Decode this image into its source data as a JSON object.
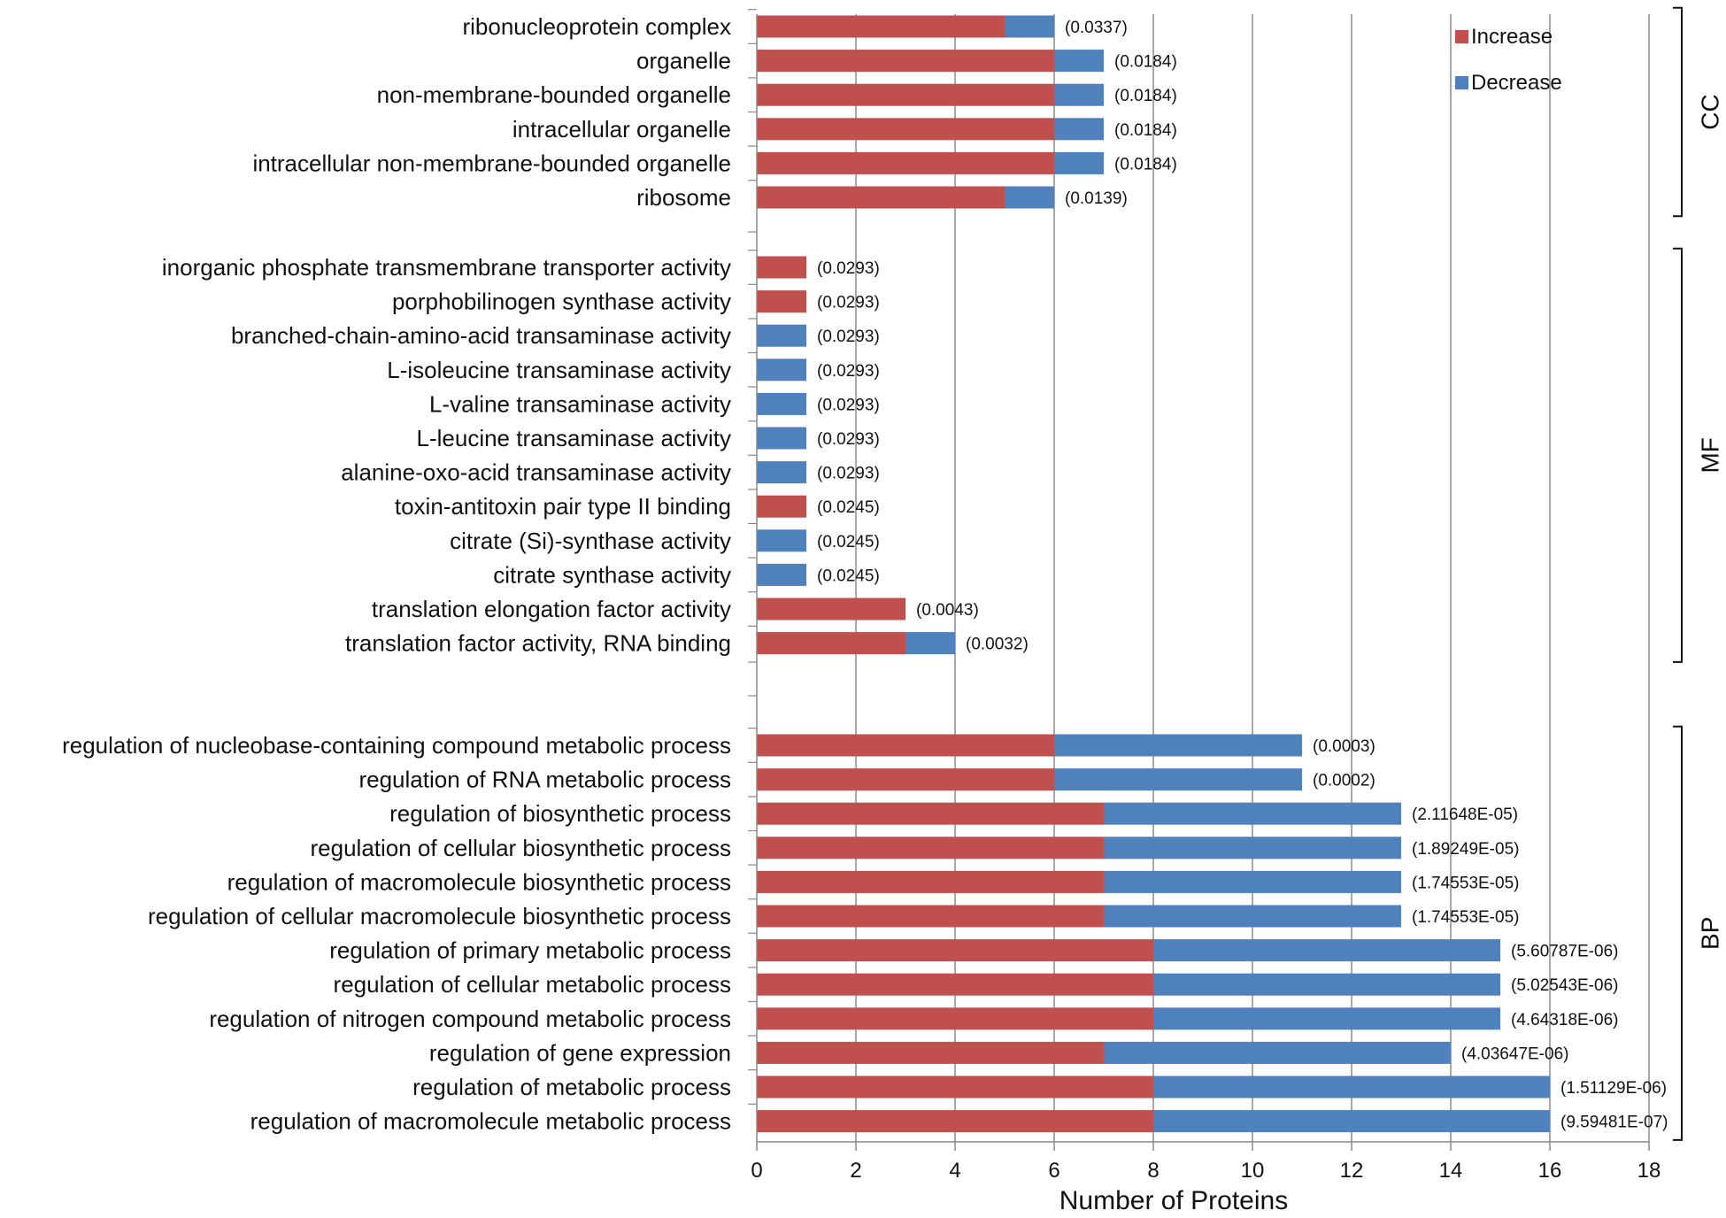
{
  "chart_data": {
    "type": "bar",
    "stacked": true,
    "orientation": "horizontal",
    "xlabel": "Number of Proteins",
    "xlim": [
      0,
      18
    ],
    "xticks": [
      0,
      2,
      4,
      6,
      8,
      10,
      12,
      14,
      16,
      18
    ],
    "grid": true,
    "legend_position": "top-right",
    "series": [
      {
        "name": "Increase",
        "color": "#c0504d"
      },
      {
        "name": "Decrease",
        "color": "#4f81bd"
      }
    ],
    "groups": [
      {
        "name": "CC",
        "categories": [
          {
            "label": "ribonucleoprotein complex",
            "increase": 5,
            "decrease": 1,
            "pvalue": "(0.0337)"
          },
          {
            "label": "organelle",
            "increase": 6,
            "decrease": 1,
            "pvalue": "(0.0184)"
          },
          {
            "label": "non-membrane-bounded organelle",
            "increase": 6,
            "decrease": 1,
            "pvalue": "(0.0184)"
          },
          {
            "label": "intracellular organelle",
            "increase": 6,
            "decrease": 1,
            "pvalue": "(0.0184)"
          },
          {
            "label": "intracellular non-membrane-bounded organelle",
            "increase": 6,
            "decrease": 1,
            "pvalue": "(0.0184)"
          },
          {
            "label": "ribosome",
            "increase": 5,
            "decrease": 1,
            "pvalue": "(0.0139)"
          }
        ]
      },
      {
        "name": "MF",
        "categories": [
          {
            "label": "inorganic phosphate transmembrane transporter activity",
            "increase": 1,
            "decrease": 0,
            "pvalue": "(0.0293)"
          },
          {
            "label": "porphobilinogen synthase activity",
            "increase": 1,
            "decrease": 0,
            "pvalue": "(0.0293)"
          },
          {
            "label": "branched-chain-amino-acid transaminase activity",
            "increase": 0,
            "decrease": 1,
            "pvalue": "(0.0293)"
          },
          {
            "label": "L-isoleucine transaminase activity",
            "increase": 0,
            "decrease": 1,
            "pvalue": "(0.0293)"
          },
          {
            "label": "L-valine transaminase activity",
            "increase": 0,
            "decrease": 1,
            "pvalue": "(0.0293)"
          },
          {
            "label": "L-leucine transaminase activity",
            "increase": 0,
            "decrease": 1,
            "pvalue": "(0.0293)"
          },
          {
            "label": "alanine-oxo-acid transaminase activity",
            "increase": 0,
            "decrease": 1,
            "pvalue": "(0.0293)"
          },
          {
            "label": "toxin-antitoxin pair type II binding",
            "increase": 1,
            "decrease": 0,
            "pvalue": "(0.0245)"
          },
          {
            "label": "citrate (Si)-synthase activity",
            "increase": 0,
            "decrease": 1,
            "pvalue": "(0.0245)"
          },
          {
            "label": "citrate synthase activity",
            "increase": 0,
            "decrease": 1,
            "pvalue": "(0.0245)"
          },
          {
            "label": "translation elongation factor activity",
            "increase": 3,
            "decrease": 0,
            "pvalue": "(0.0043)"
          },
          {
            "label": "translation factor activity, RNA binding",
            "increase": 3,
            "decrease": 1,
            "pvalue": "(0.0032)"
          }
        ]
      },
      {
        "name": "BP",
        "categories": [
          {
            "label": "regulation of nucleobase-containing compound metabolic process",
            "increase": 6,
            "decrease": 5,
            "pvalue": "(0.0003)"
          },
          {
            "label": "regulation of RNA metabolic process",
            "increase": 6,
            "decrease": 5,
            "pvalue": "(0.0002)"
          },
          {
            "label": "regulation of biosynthetic process",
            "increase": 7,
            "decrease": 6,
            "pvalue": "(2.11648E-05)"
          },
          {
            "label": "regulation of cellular biosynthetic process",
            "increase": 7,
            "decrease": 6,
            "pvalue": "(1.89249E-05)"
          },
          {
            "label": "regulation of macromolecule biosynthetic process",
            "increase": 7,
            "decrease": 6,
            "pvalue": "(1.74553E-05)"
          },
          {
            "label": "regulation of cellular macromolecule biosynthetic process",
            "increase": 7,
            "decrease": 6,
            "pvalue": "(1.74553E-05)"
          },
          {
            "label": "regulation of primary metabolic process",
            "increase": 8,
            "decrease": 7,
            "pvalue": "(5.60787E-06)"
          },
          {
            "label": "regulation of cellular metabolic process",
            "increase": 8,
            "decrease": 7,
            "pvalue": "(5.02543E-06)"
          },
          {
            "label": "regulation of nitrogen compound metabolic process",
            "increase": 8,
            "decrease": 7,
            "pvalue": "(4.64318E-06)"
          },
          {
            "label": "regulation of gene expression",
            "increase": 7,
            "decrease": 7,
            "pvalue": "(4.03647E-06)"
          },
          {
            "label": "regulation of metabolic process",
            "increase": 8,
            "decrease": 8,
            "pvalue": "(1.51129E-06)"
          },
          {
            "label": "regulation of macromolecule metabolic process",
            "increase": 8,
            "decrease": 8,
            "pvalue": "(9.59481E-07)"
          }
        ]
      }
    ]
  }
}
